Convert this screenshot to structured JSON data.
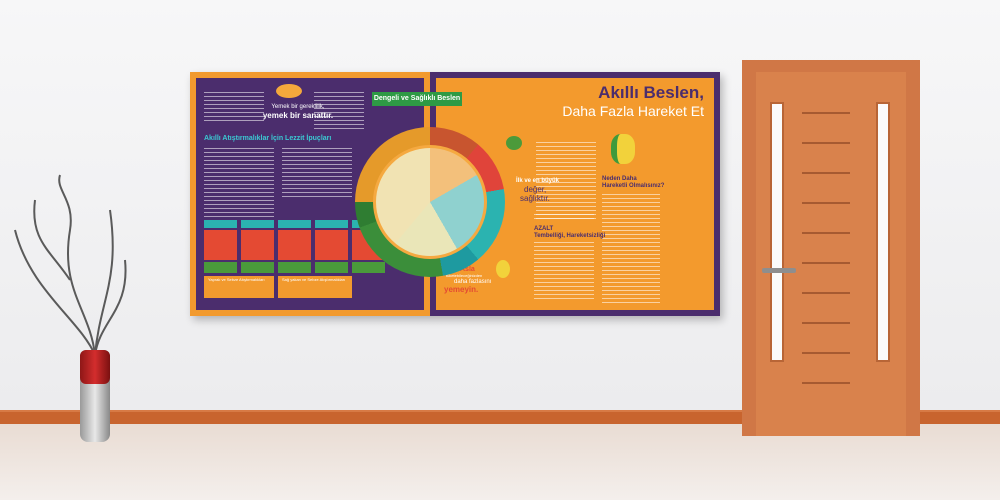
{
  "poster": {
    "left_panel": {
      "quote_line1": "Yemek bir gereklilik,",
      "quote_line2": "yemek bir sanattır.",
      "tips_heading": "Akıllı Atıştırmalıklar İçin Lezzit İpuçları",
      "bottom_box_left": "Yaprak ve Sebze Atıştırmalıkları",
      "bottom_box_right": "Sağ yakan ve Sebze Atıştırmalıkları"
    },
    "banner": "Dengeli ve Sağlıklı Beslen",
    "right_panel": {
      "title_line1": "Akıllı Beslen,",
      "title_line2": "Daha Fazla Hareket Et",
      "health_line1": "İlk ve en büyük",
      "health_line2": "değer,",
      "health_line3": "sağlıktır.",
      "reduce_heading": "AZALT",
      "reduce_sub": "Tembelliği, Hareketsizliği",
      "why_heading_line1": "Neden Daha",
      "why_heading_line2": "Hareketli Olmalısınız?",
      "never_line1": "Asla",
      "never_line2": "tüketebileceğinizden",
      "never_line3": "daha fazlasını",
      "never_line4": "yemeyin."
    },
    "colors": {
      "purple": "#4b2d6d",
      "orange": "#f39a2d",
      "green": "#2e9a45",
      "red": "#e44a33",
      "teal": "#2bb3b0"
    }
  }
}
